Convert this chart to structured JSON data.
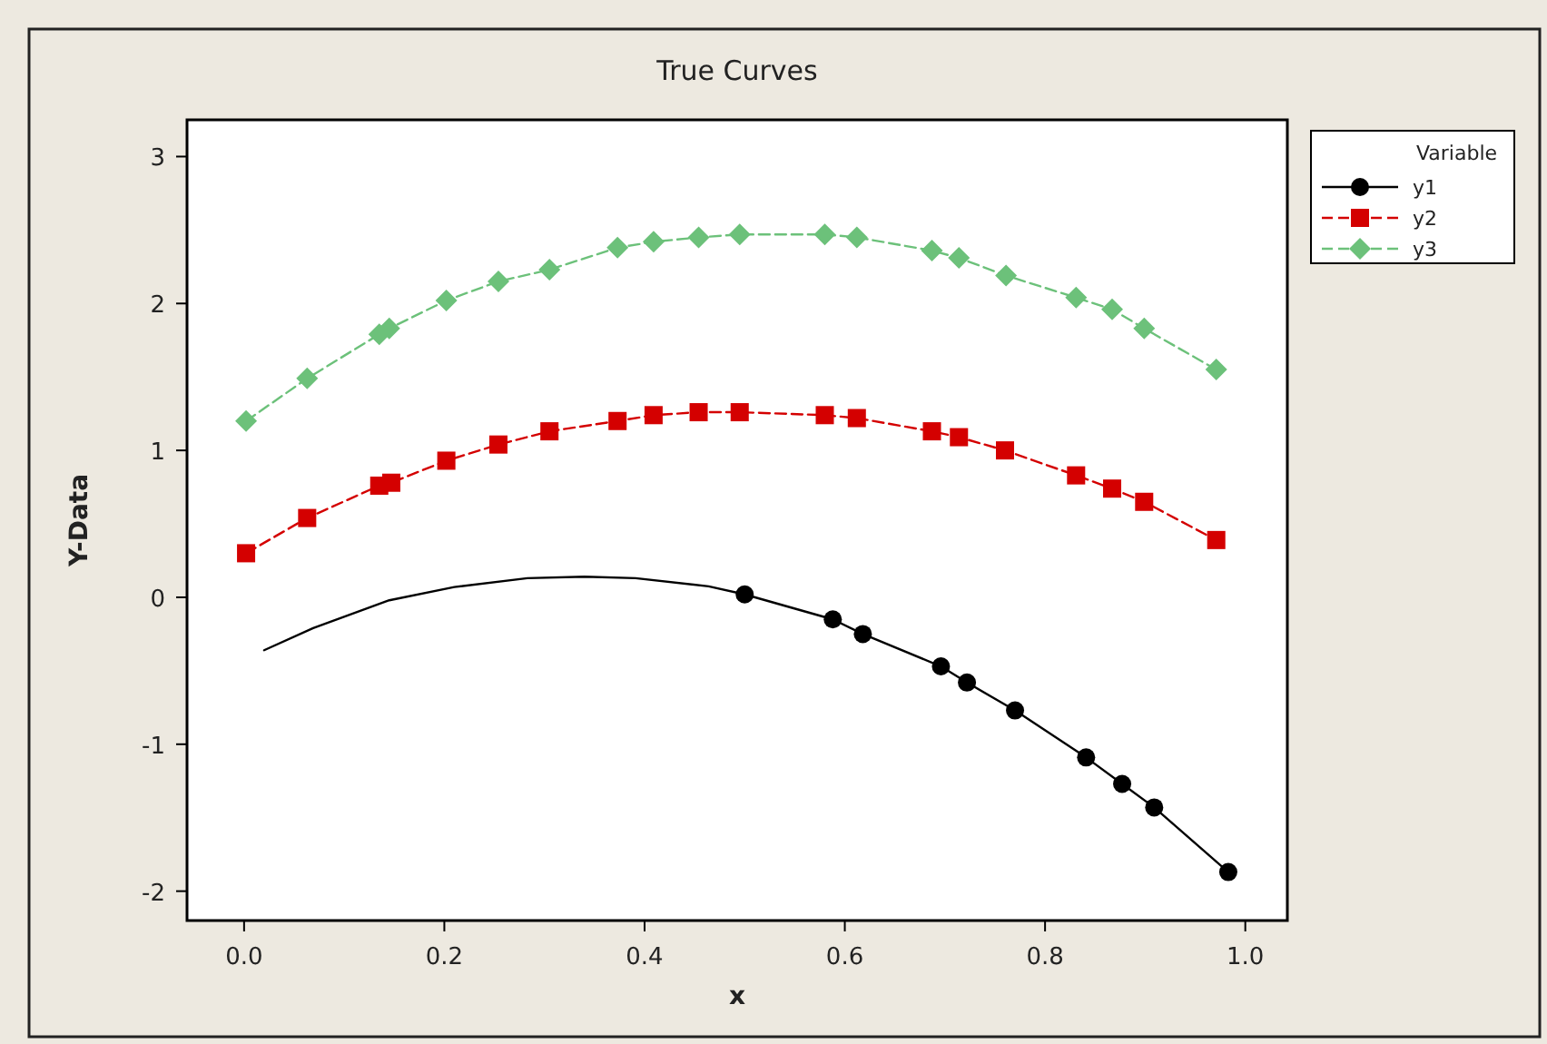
{
  "chart_data": {
    "type": "line",
    "title": "True Curves",
    "xlabel": "x",
    "ylabel": "Y-Data",
    "legend_title": "Variable",
    "legend": "right",
    "grid": false,
    "xlim": [
      -0.057,
      1.042
    ],
    "xticks": [
      {
        "value": 0,
        "label": "0.0"
      },
      {
        "value": 0.2,
        "label": "0.2"
      },
      {
        "value": 0.4,
        "label": "0.4"
      },
      {
        "value": 0.6,
        "label": "0.6"
      },
      {
        "value": 0.8,
        "label": "0.8"
      },
      {
        "value": 1,
        "label": "1.0"
      }
    ],
    "ylim": [
      -2.2,
      3.25
    ],
    "yticks": [
      -2,
      -1,
      0,
      1,
      2,
      3
    ],
    "series": [
      {
        "name": "y1",
        "color": "#000000",
        "marker": "circle",
        "line_style": "solid",
        "x": [
          0.5,
          0.588,
          0.618,
          0.696,
          0.722,
          0.77,
          0.841,
          0.877,
          0.909,
          0.983
        ],
        "values": [
          0.02,
          -0.15,
          -0.25,
          -0.47,
          -0.58,
          -0.77,
          -1.09,
          -1.27,
          -1.43,
          -1.87
        ]
      },
      {
        "color": "#000000",
        "marker": "none",
        "line_style": "solid",
        "x": [
          0.02,
          0.069,
          0.145,
          0.21,
          0.283,
          0.34,
          0.391,
          0.464,
          0.5
        ],
        "values": [
          -0.36,
          -0.21,
          -0.02,
          0.07,
          0.13,
          0.14,
          0.13,
          0.075,
          0.02
        ]
      },
      {
        "name": "y2",
        "color": "#d40000",
        "marker": "square",
        "line_style": "dashed",
        "x": [
          0.002,
          0.063,
          0.135,
          0.147,
          0.202,
          0.254,
          0.305,
          0.373,
          0.409,
          0.454,
          0.495,
          0.58,
          0.612,
          0.687,
          0.714,
          0.76,
          0.831,
          0.867,
          0.899,
          0.971
        ],
        "values": [
          0.3,
          0.54,
          0.76,
          0.78,
          0.93,
          1.04,
          1.13,
          1.2,
          1.24,
          1.26,
          1.26,
          1.24,
          1.22,
          1.13,
          1.09,
          1.0,
          0.83,
          0.74,
          0.65,
          0.39
        ]
      },
      {
        "name": "y3",
        "color": "#6cc17a",
        "marker": "diamond",
        "line_style": "dashed",
        "x": [
          0.002,
          0.063,
          0.135,
          0.145,
          0.202,
          0.254,
          0.305,
          0.373,
          0.409,
          0.454,
          0.495,
          0.58,
          0.612,
          0.687,
          0.714,
          0.761,
          0.831,
          0.867,
          0.899,
          0.971
        ],
        "values": [
          1.2,
          1.49,
          1.79,
          1.83,
          2.02,
          2.15,
          2.23,
          2.38,
          2.42,
          2.45,
          2.47,
          2.47,
          2.45,
          2.36,
          2.31,
          2.19,
          2.04,
          1.96,
          1.83,
          1.55
        ]
      }
    ]
  }
}
